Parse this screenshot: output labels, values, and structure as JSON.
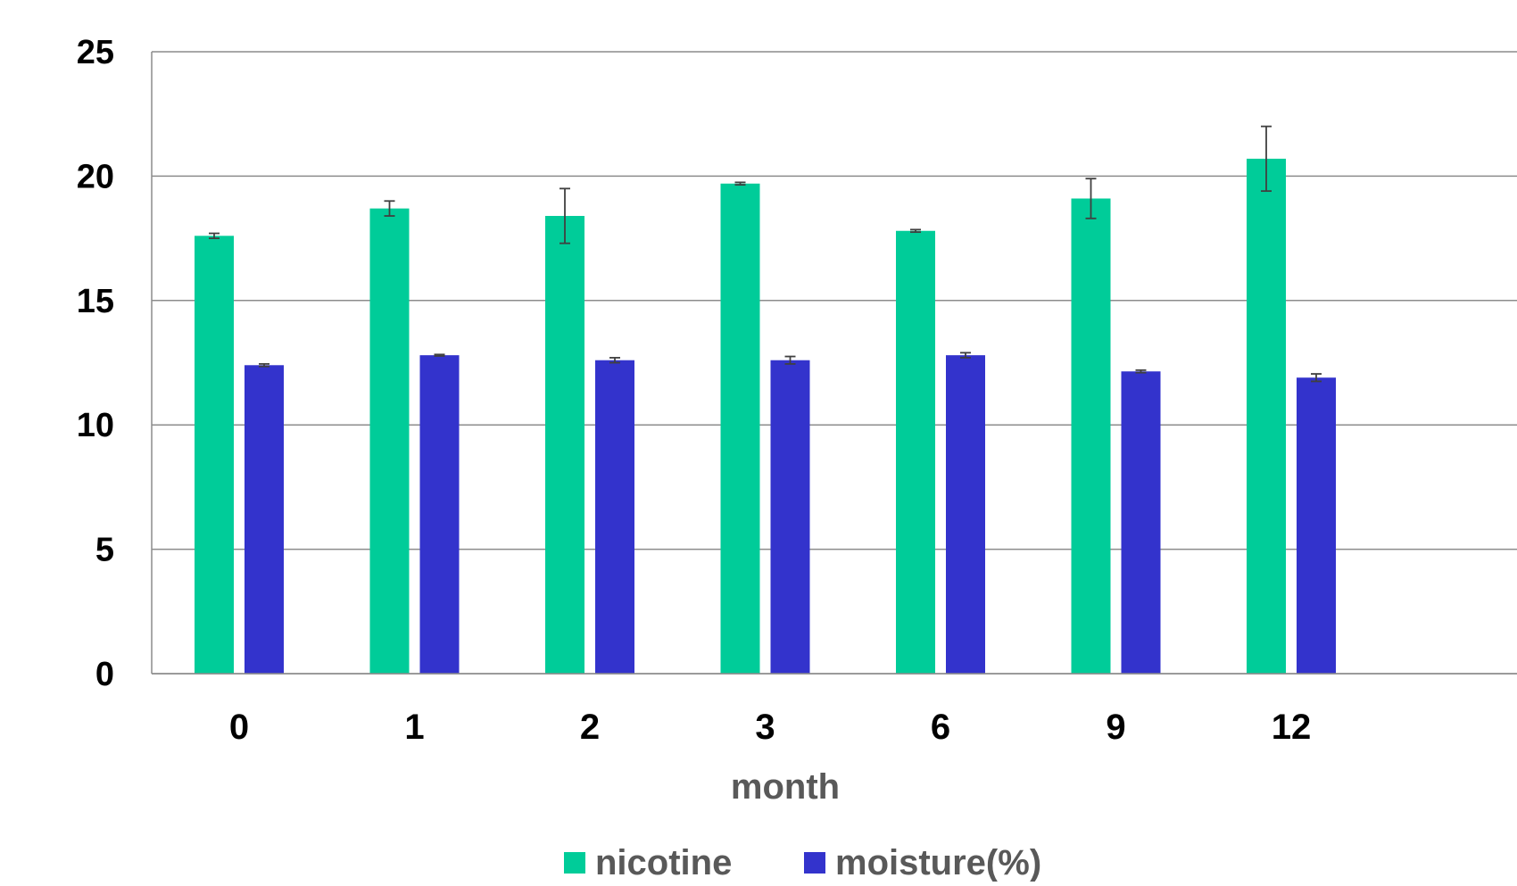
{
  "chart_data": {
    "type": "bar",
    "categories": [
      "0",
      "1",
      "2",
      "3",
      "6",
      "9",
      "12"
    ],
    "series": [
      {
        "name": "nicotine",
        "color": "#00CC99",
        "values": [
          17.6,
          18.7,
          18.4,
          19.7,
          17.8,
          19.1,
          20.7
        ],
        "error": [
          0.1,
          0.3,
          1.1,
          0.05,
          0.05,
          0.8,
          1.3
        ]
      },
      {
        "name": "moisture(%)",
        "color": "#3333CC",
        "values": [
          12.4,
          12.8,
          12.6,
          12.6,
          12.8,
          12.15,
          11.9
        ],
        "error": [
          0.05,
          0.03,
          0.1,
          0.15,
          0.1,
          0.05,
          0.15
        ]
      }
    ],
    "xlabel": "month",
    "ylabel": "",
    "ylim": [
      0,
      25
    ],
    "yticks": [
      "0",
      "5",
      "10",
      "15",
      "20",
      "25"
    ],
    "grid": true,
    "legend": "bottom"
  }
}
